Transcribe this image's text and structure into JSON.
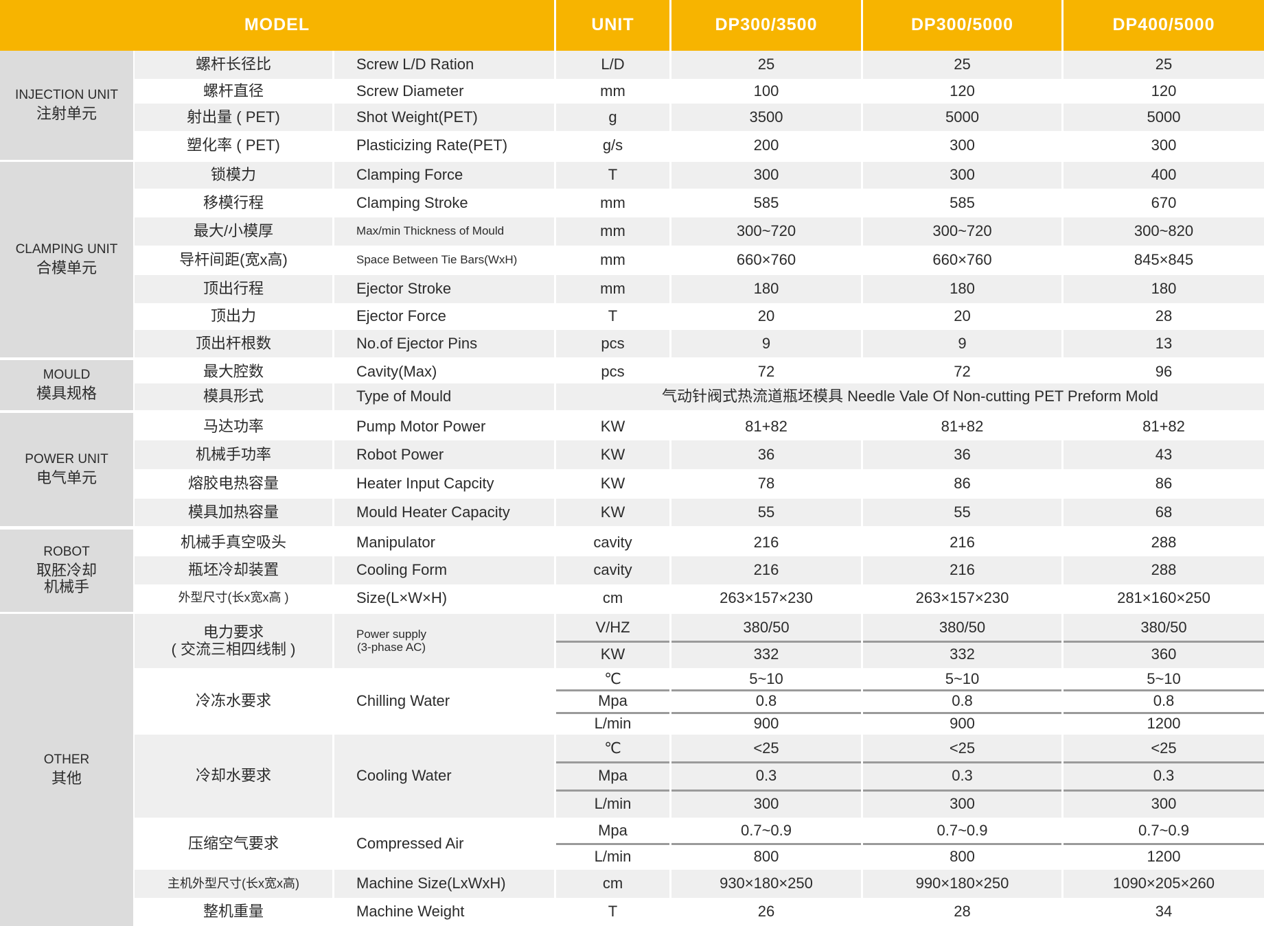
{
  "header": {
    "model": "MODEL",
    "unit": "UNIT",
    "models": [
      "DP300/3500",
      "DP300/5000",
      "DP400/5000"
    ]
  },
  "colors": {
    "header": "#f7b400",
    "group": "#dcdcdc",
    "row_alt": "#efefef",
    "divider": "#9a9a9a"
  },
  "groups": [
    {
      "en": "INJECTION UNIT",
      "cn": "注射单元",
      "rows": [
        {
          "cn": "螺杆长径比",
          "en": "Screw L/D Ration",
          "unit": "L/D",
          "values": [
            "25",
            "25",
            "25"
          ]
        },
        {
          "cn": "螺杆直径",
          "en": "Screw Diameter",
          "unit": "mm",
          "values": [
            "100",
            "120",
            "120"
          ]
        },
        {
          "cn": "射出量 ( PET)",
          "en": "Shot Weight(PET)",
          "unit": "g",
          "values": [
            "3500",
            "5000",
            "5000"
          ]
        },
        {
          "cn": "塑化率 ( PET)",
          "en": "Plasticizing Rate(PET)",
          "unit": "g/s",
          "values": [
            "200",
            "300",
            "300"
          ]
        }
      ]
    },
    {
      "en": "CLAMPING UNIT",
      "cn": "合模单元",
      "rows": [
        {
          "cn": "锁模力",
          "en": "Clamping Force",
          "unit": "T",
          "values": [
            "300",
            "300",
            "400"
          ]
        },
        {
          "cn": "移模行程",
          "en": "Clamping Stroke",
          "unit": "mm",
          "values": [
            "585",
            "585",
            "670"
          ]
        },
        {
          "cn": "最大/小模厚",
          "en": "Max/min Thickness of Mould",
          "unit": "mm",
          "values": [
            "300~720",
            "300~720",
            "300~820"
          ]
        },
        {
          "cn": "导杆间距(宽x高)",
          "en": "Space Between Tie Bars(WxH)",
          "unit": "mm",
          "values": [
            "660×760",
            "660×760",
            "845×845"
          ]
        },
        {
          "cn": "顶出行程",
          "en": "Ejector Stroke",
          "unit": "mm",
          "values": [
            "180",
            "180",
            "180"
          ]
        },
        {
          "cn": "顶出力",
          "en": "Ejector Force",
          "unit": "T",
          "values": [
            "20",
            "20",
            "28"
          ]
        },
        {
          "cn": "顶出杆根数",
          "en": "No.of Ejector Pins",
          "unit": "pcs",
          "values": [
            "9",
            "9",
            "13"
          ]
        }
      ]
    },
    {
      "en": "MOULD",
      "cn": "模具规格",
      "rows": [
        {
          "cn": "最大腔数",
          "en": "Cavity(Max)",
          "unit": "pcs",
          "values": [
            "72",
            "72",
            "96"
          ]
        },
        {
          "cn": "模具形式",
          "en": "Type of Mould",
          "merged": "气动针阀式热流道瓶坯模具  Needle Vale Of Non-cutting PET Preform Mold"
        }
      ]
    },
    {
      "en": "POWER UNIT",
      "cn": "电气单元",
      "rows": [
        {
          "cn": "马达功率",
          "en": "Pump Motor Power",
          "unit": "KW",
          "values": [
            "81+82",
            "81+82",
            "81+82"
          ]
        },
        {
          "cn": "机械手功率",
          "en": "Robot Power",
          "unit": "KW",
          "values": [
            "36",
            "36",
            "43"
          ]
        },
        {
          "cn": "熔胶电热容量",
          "en": "Heater Input Capcity",
          "unit": "KW",
          "values": [
            "78",
            "86",
            "86"
          ]
        },
        {
          "cn": "模具加热容量",
          "en": "Mould Heater Capacity",
          "unit": "KW",
          "values": [
            "55",
            "55",
            "68"
          ]
        }
      ]
    },
    {
      "en": "ROBOT",
      "cn": "取胚冷却\n机械手",
      "rows": [
        {
          "cn": "机械手真空吸头",
          "en": "Manipulator",
          "unit": "cavity",
          "values": [
            "216",
            "216",
            "288"
          ]
        },
        {
          "cn": "瓶坯冷却装置",
          "en": "Cooling Form",
          "unit": "cavity",
          "values": [
            "216",
            "216",
            "288"
          ]
        },
        {
          "cn": "外型尺寸(长x宽x高 )",
          "en": "Size(L×W×H)",
          "unit": "cm",
          "values": [
            "263×157×230",
            "263×157×230",
            "281×160×250"
          ]
        }
      ]
    },
    {
      "en": "OTHER",
      "cn": "其他",
      "rows": [
        {
          "cn": "电力要求\n( 交流三相四线制 )",
          "en": "Power supply\n(3-phase AC)",
          "sub": [
            {
              "unit": "V/HZ",
              "values": [
                "380/50",
                "380/50",
                "380/50"
              ]
            },
            {
              "unit": "KW",
              "values": [
                "332",
                "332",
                "360"
              ]
            }
          ]
        },
        {
          "cn": "冷冻水要求",
          "en": "Chilling Water",
          "sub": [
            {
              "unit": "℃",
              "values": [
                "5~10",
                "5~10",
                "5~10"
              ]
            },
            {
              "unit": "Mpa",
              "values": [
                "0.8",
                "0.8",
                "0.8"
              ]
            },
            {
              "unit": "L/min",
              "values": [
                "900",
                "900",
                "1200"
              ]
            }
          ]
        },
        {
          "cn": "冷却水要求",
          "en": "Cooling Water",
          "sub": [
            {
              "unit": "℃",
              "values": [
                "<25",
                "<25",
                "<25"
              ]
            },
            {
              "unit": "Mpa",
              "values": [
                "0.3",
                "0.3",
                "0.3"
              ]
            },
            {
              "unit": "L/min",
              "values": [
                "300",
                "300",
                "300"
              ]
            }
          ]
        },
        {
          "cn": "压缩空气要求",
          "en": "Compressed Air",
          "sub": [
            {
              "unit": "Mpa",
              "values": [
                "0.7~0.9",
                "0.7~0.9",
                "0.7~0.9"
              ]
            },
            {
              "unit": "L/min",
              "values": [
                "800",
                "800",
                "1200"
              ]
            }
          ]
        },
        {
          "cn": "主机外型尺寸(长x宽x高)",
          "en": "Machine Size(LxWxH)",
          "unit": "cm",
          "values": [
            "930×180×250",
            "990×180×250",
            "1090×205×260"
          ]
        },
        {
          "cn": "整机重量",
          "en": "Machine Weight",
          "unit": "T",
          "values": [
            "26",
            "28",
            "34"
          ]
        }
      ]
    }
  ]
}
